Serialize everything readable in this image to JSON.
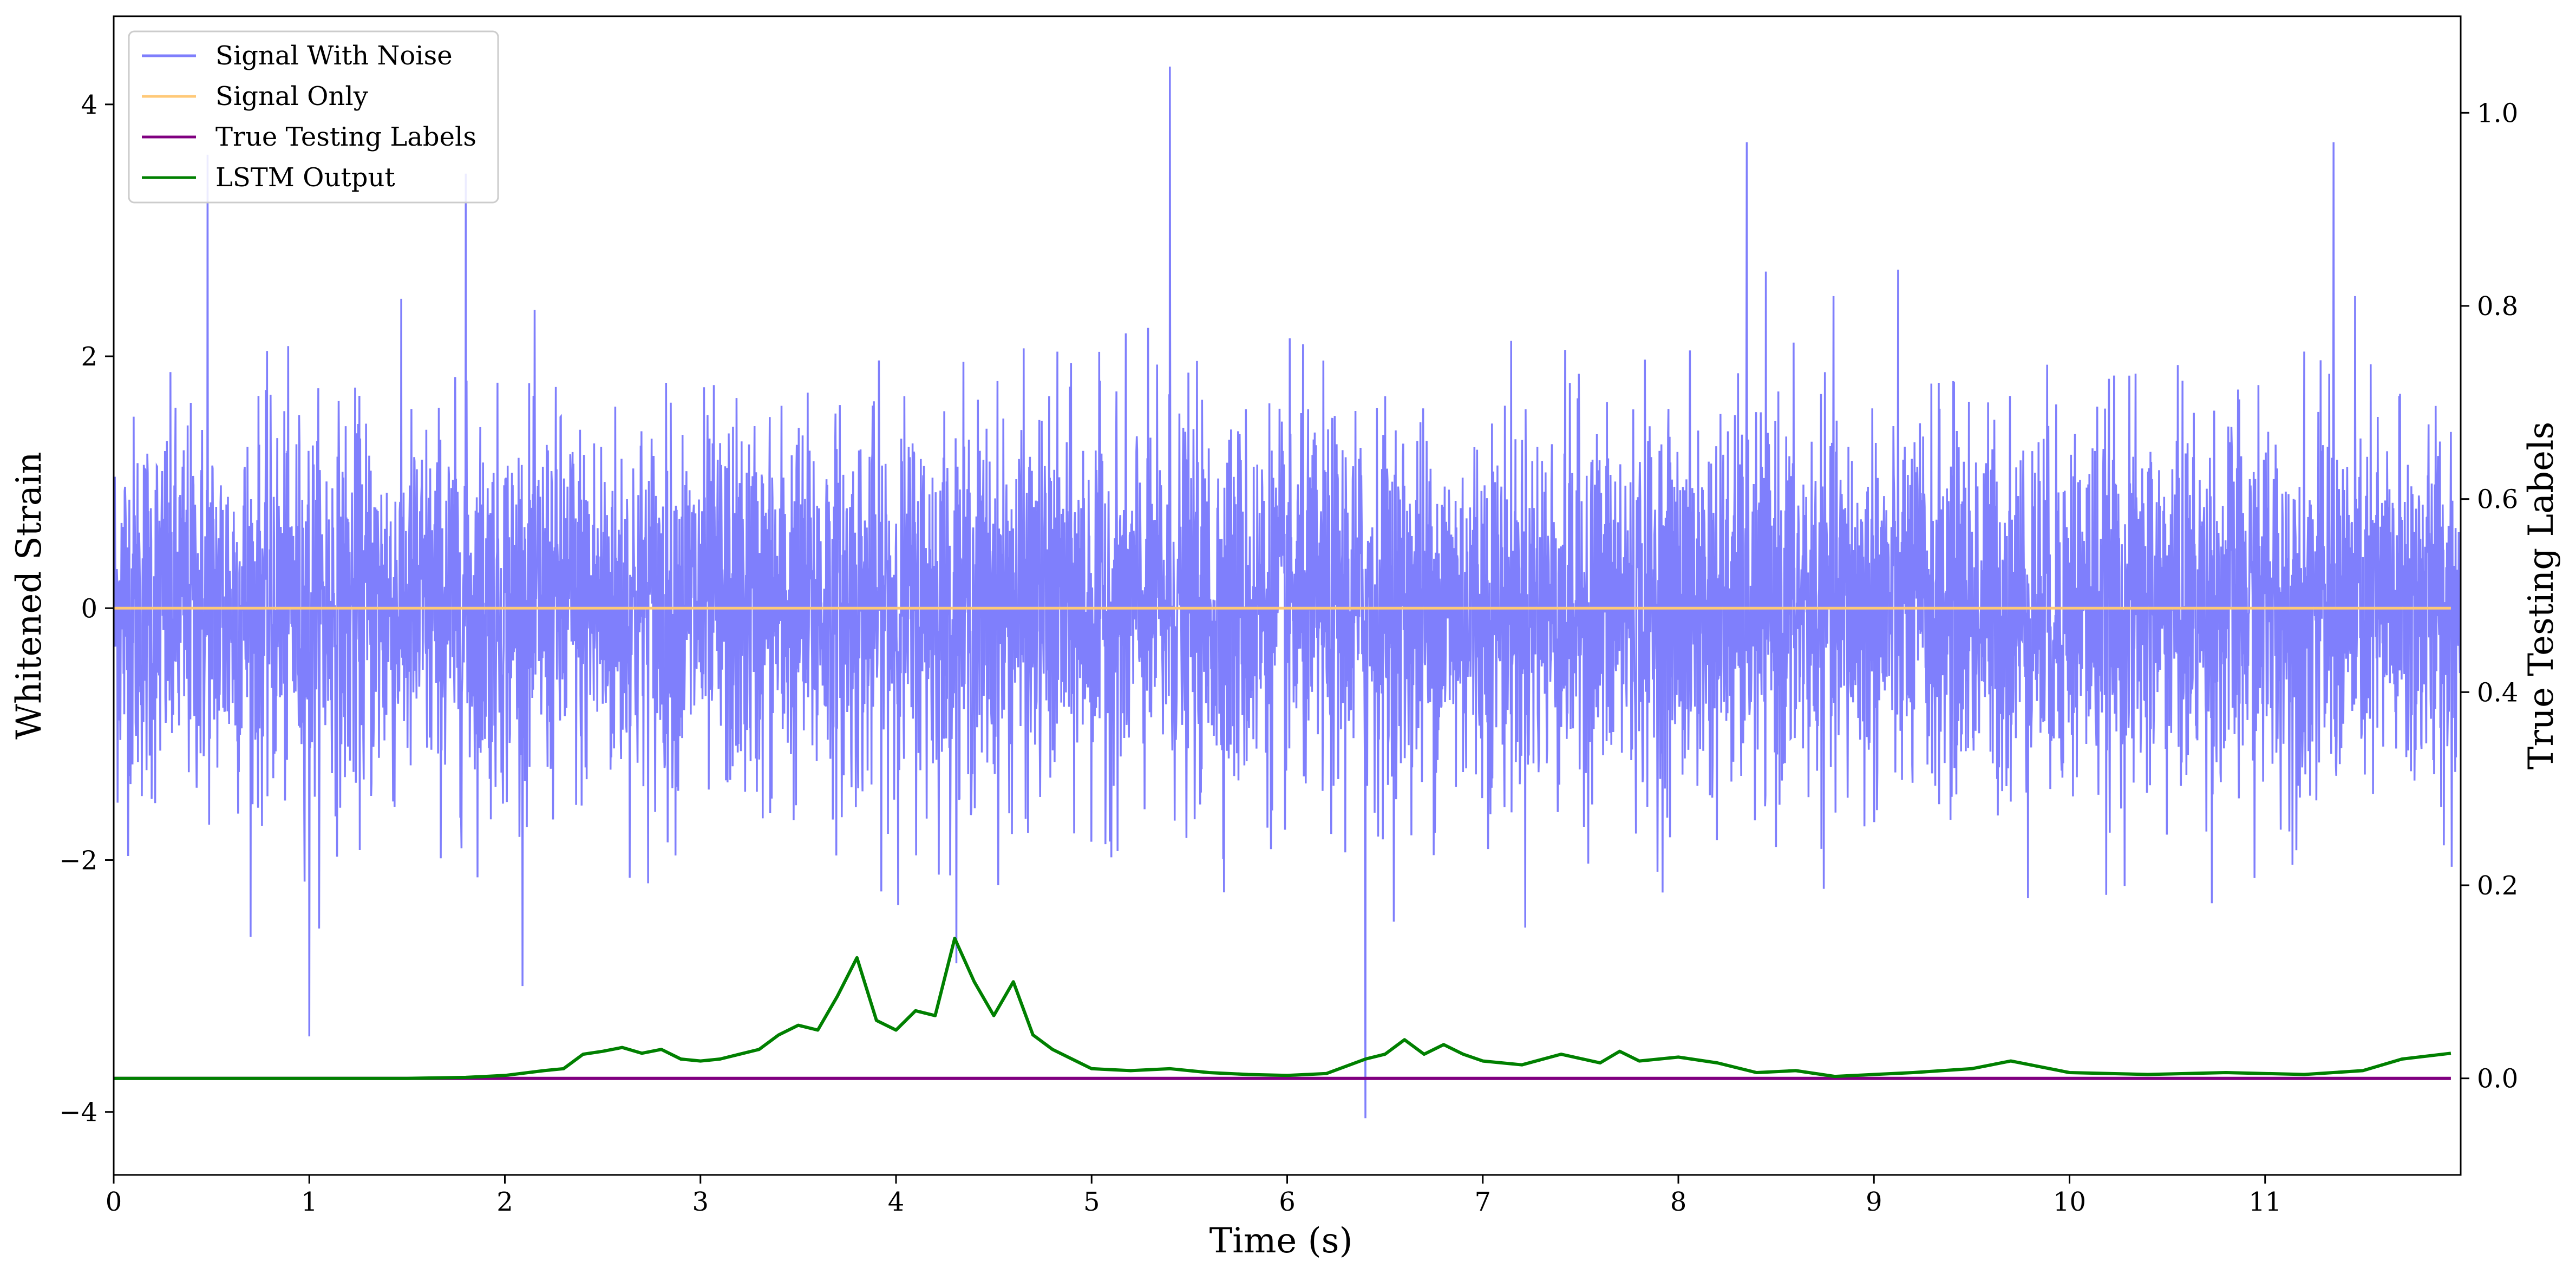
{
  "chart_data": {
    "type": "line",
    "xlabel": "Time (s)",
    "ylabel": "Whitened Strain",
    "y2label": "True Testing Labels",
    "xlim": [
      0,
      12
    ],
    "ylim": [
      -4.5,
      4.7
    ],
    "y2lim": [
      -0.1,
      1.1
    ],
    "x_ticks": [
      "0",
      "1",
      "2",
      "3",
      "4",
      "5",
      "6",
      "7",
      "8",
      "9",
      "10",
      "11"
    ],
    "y_ticks": [
      "−4",
      "−2",
      "0",
      "2",
      "4"
    ],
    "y2_ticks": [
      "0.0",
      "0.2",
      "0.4",
      "0.6",
      "0.8",
      "1.0"
    ],
    "grid": false,
    "legend_position": "top-left",
    "legend": [
      {
        "label": "Signal With Noise",
        "color": "#7f7ffc"
      },
      {
        "label": "Signal Only",
        "color": "#ffc978"
      },
      {
        "label": "True Testing Labels",
        "color": "#800080"
      },
      {
        "label": "LSTM Output",
        "color": "#008000"
      }
    ],
    "series": [
      {
        "name": "Signal With Noise",
        "axis": "left",
        "color": "#7f7ffc",
        "description_values": {
          "mean": 0,
          "approx_std": 0.75,
          "approx_max": 4.3,
          "approx_min": -4.05
        },
        "notable_spikes": [
          [
            0.48,
            3.6
          ],
          [
            1.0,
            -3.4
          ],
          [
            1.8,
            3.45
          ],
          [
            5.4,
            4.3
          ],
          [
            6.4,
            -4.05
          ],
          [
            8.35,
            3.7
          ],
          [
            11.35,
            3.7
          ]
        ]
      },
      {
        "name": "Signal Only",
        "axis": "left",
        "color": "#ffc978",
        "x": [
          0,
          11.95
        ],
        "y": [
          0,
          0
        ]
      },
      {
        "name": "True Testing Labels",
        "axis": "right",
        "color": "#800080",
        "x": [
          0,
          11.95
        ],
        "y": [
          0,
          0
        ]
      },
      {
        "name": "LSTM Output",
        "axis": "right",
        "color": "#008000",
        "x": [
          0.0,
          1.0,
          1.5,
          1.8,
          2.0,
          2.2,
          2.3,
          2.4,
          2.5,
          2.6,
          2.7,
          2.8,
          2.9,
          3.0,
          3.1,
          3.2,
          3.3,
          3.4,
          3.5,
          3.6,
          3.7,
          3.8,
          3.9,
          4.0,
          4.1,
          4.2,
          4.3,
          4.4,
          4.5,
          4.6,
          4.7,
          4.8,
          4.9,
          5.0,
          5.2,
          5.4,
          5.6,
          5.8,
          6.0,
          6.2,
          6.4,
          6.5,
          6.6,
          6.7,
          6.8,
          6.9,
          7.0,
          7.2,
          7.4,
          7.6,
          7.7,
          7.8,
          8.0,
          8.2,
          8.4,
          8.6,
          8.8,
          9.0,
          9.2,
          9.5,
          9.7,
          10.0,
          10.4,
          10.8,
          11.2,
          11.5,
          11.7,
          11.95
        ],
        "y": [
          0.0,
          0.0,
          0.0,
          0.001,
          0.003,
          0.008,
          0.01,
          0.025,
          0.028,
          0.032,
          0.026,
          0.03,
          0.02,
          0.018,
          0.02,
          0.025,
          0.03,
          0.045,
          0.055,
          0.05,
          0.085,
          0.125,
          0.06,
          0.05,
          0.07,
          0.065,
          0.145,
          0.1,
          0.065,
          0.1,
          0.045,
          0.03,
          0.02,
          0.01,
          0.008,
          0.01,
          0.006,
          0.004,
          0.003,
          0.005,
          0.02,
          0.025,
          0.04,
          0.025,
          0.035,
          0.025,
          0.018,
          0.014,
          0.025,
          0.016,
          0.028,
          0.018,
          0.022,
          0.016,
          0.006,
          0.008,
          0.002,
          0.004,
          0.006,
          0.01,
          0.018,
          0.006,
          0.004,
          0.006,
          0.004,
          0.008,
          0.02,
          0.026
        ]
      }
    ]
  }
}
